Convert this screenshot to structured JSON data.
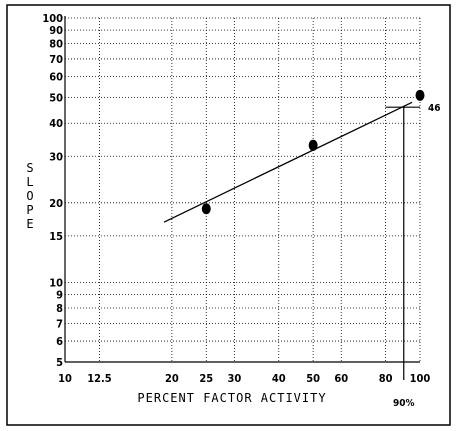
{
  "chart_data": {
    "type": "line",
    "xlabel": "PERCENT FACTOR ACTIVITY",
    "ylabel": "SLOPE",
    "x_scale": "log",
    "y_scale": "log",
    "xlim": [
      10,
      100
    ],
    "ylim": [
      5,
      100
    ],
    "x_ticks": [
      10,
      12.5,
      20,
      25,
      30,
      40,
      50,
      60,
      80,
      100
    ],
    "x_tick_labels": [
      "10",
      "12.5",
      "20",
      "25",
      "30",
      "40",
      "50",
      "60",
      "80",
      "100"
    ],
    "y_ticks": [
      5,
      6,
      7,
      8,
      9,
      10,
      15,
      20,
      30,
      40,
      50,
      60,
      70,
      80,
      90,
      100
    ],
    "y_tick_labels": [
      "5",
      "6",
      "7",
      "8",
      "9",
      "10",
      "15",
      "20",
      "30",
      "40",
      "50",
      "60",
      "70",
      "80",
      "90",
      "100"
    ],
    "grid": true,
    "points": [
      {
        "x": 25,
        "y": 19
      },
      {
        "x": 50,
        "y": 33
      },
      {
        "x": 100,
        "y": 51
      }
    ],
    "fit_line": {
      "x": [
        19,
        95
      ],
      "y": [
        16.9,
        48
      ]
    },
    "annotations": {
      "slope_value": {
        "label": "46",
        "y": 46,
        "x_from": 80,
        "x_to": 100
      },
      "activity_value": {
        "label": "90%",
        "x": 90
      }
    }
  }
}
